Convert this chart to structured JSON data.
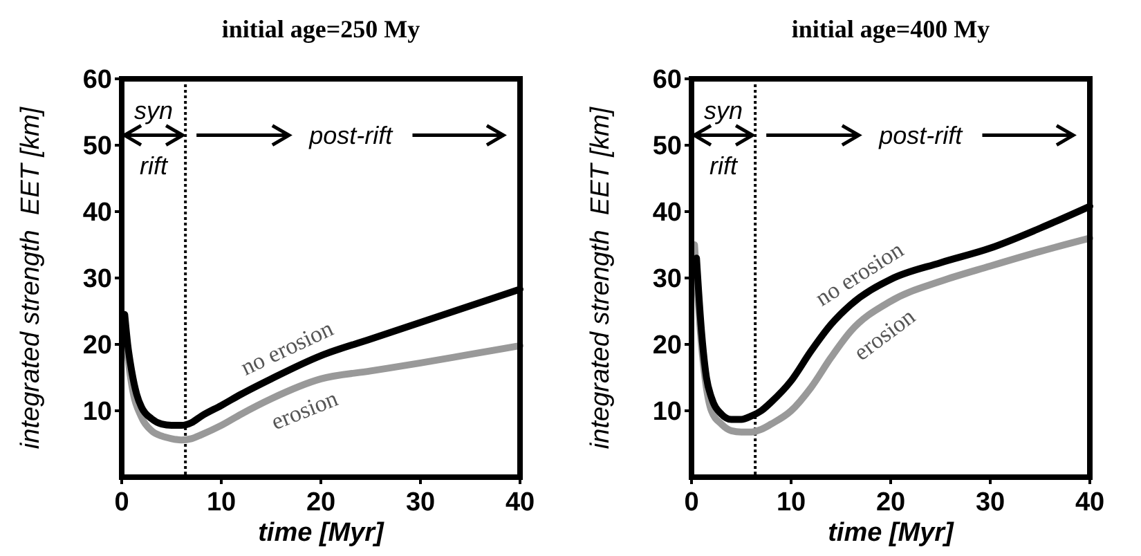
{
  "chart_data": [
    {
      "type": "line",
      "title": "initial age=250 My",
      "xlabel": "time [Myr]",
      "ylabel": "integrated strength  EET [km]",
      "xlim": [
        0,
        40
      ],
      "ylim": [
        0,
        60
      ],
      "xticks": [
        0,
        10,
        20,
        30,
        40
      ],
      "yticks": [
        10,
        20,
        30,
        40,
        50,
        60
      ],
      "grid": false,
      "legend": false,
      "ref_lines": [
        {
          "axis": "x",
          "value": 6.4,
          "line_style": "dotted",
          "color": "#000000"
        }
      ],
      "annotations": [
        "syn",
        "rift",
        "post-rift"
      ],
      "series": [
        {
          "name": "no erosion",
          "color": "#000000",
          "x": [
            0.3,
            0.6,
            1,
            1.5,
            2,
            3,
            4,
            5,
            6,
            7,
            8,
            10,
            12,
            15,
            20,
            25,
            30,
            35,
            40
          ],
          "values": [
            24.5,
            20,
            16,
            12.5,
            10.5,
            8.8,
            8,
            7.8,
            7.8,
            8.2,
            9.2,
            10.8,
            12.5,
            14.8,
            18.3,
            20.8,
            23.3,
            25.8,
            28.3
          ]
        },
        {
          "name": "erosion",
          "color": "#999999",
          "x": [
            0.3,
            0.6,
            1,
            2,
            3,
            4,
            5,
            6,
            7,
            8,
            10,
            12,
            15,
            20,
            25,
            30,
            35,
            40
          ],
          "values": [
            24,
            18.5,
            14,
            9,
            7,
            6.2,
            5.8,
            5.6,
            5.8,
            6.4,
            7.8,
            9.5,
            11.8,
            14.8,
            16,
            17.2,
            18.5,
            19.8
          ]
        }
      ]
    },
    {
      "type": "line",
      "title": "initial age=400 My",
      "xlabel": "time [Myr]",
      "ylabel": "integrated strength  EET [km]",
      "xlim": [
        0,
        40
      ],
      "ylim": [
        0,
        60
      ],
      "xticks": [
        0,
        10,
        20,
        30,
        40
      ],
      "yticks": [
        10,
        20,
        30,
        40,
        50,
        60
      ],
      "grid": false,
      "legend": false,
      "ref_lines": [
        {
          "axis": "x",
          "value": 6.4,
          "line_style": "dotted",
          "color": "#000000"
        }
      ],
      "annotations": [
        "syn",
        "rift",
        "post-rift"
      ],
      "series": [
        {
          "name": "no erosion",
          "color": "#000000",
          "x": [
            0.5,
            1,
            1.5,
            2,
            3,
            4,
            5,
            6,
            7,
            8,
            10,
            12,
            14,
            16,
            20,
            25,
            30,
            35,
            40
          ],
          "values": [
            33,
            22,
            15,
            12,
            9.5,
            8.7,
            8.7,
            9.2,
            10,
            11.3,
            14.5,
            19,
            23,
            26,
            29.8,
            32.3,
            34.5,
            37.5,
            40.8
          ]
        },
        {
          "name": "erosion",
          "color": "#999999",
          "x": [
            0.3,
            1,
            2,
            3,
            4,
            5,
            6,
            7,
            8,
            10,
            12,
            14,
            16,
            20,
            25,
            30,
            35,
            40
          ],
          "values": [
            35,
            20,
            10,
            8,
            7,
            6.8,
            6.8,
            7.2,
            8,
            10,
            13.5,
            18,
            22,
            26.5,
            29.5,
            31.8,
            34,
            36
          ]
        }
      ]
    }
  ]
}
